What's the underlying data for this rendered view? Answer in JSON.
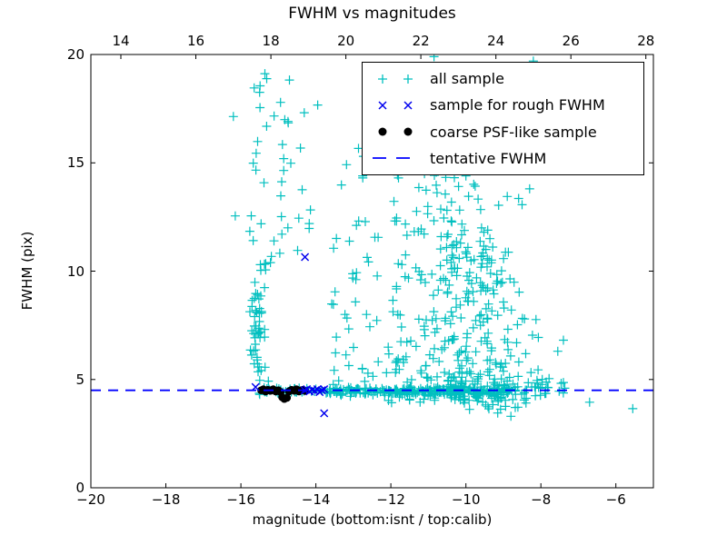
{
  "chart_data": {
    "type": "scatter",
    "title": "FWHM vs magnitudes",
    "xlabel": "magnitude (bottom:isnt / top:calib)",
    "ylabel": "FWHM (pix)",
    "grid": false,
    "x_axis": {
      "range": [
        -20,
        -5
      ],
      "ticks": [
        -20,
        -18,
        -16,
        -14,
        -12,
        -10,
        -8,
        -6
      ],
      "tick_labels": [
        "−20",
        "−18",
        "−16",
        "−14",
        "−12",
        "−10",
        "−8",
        "−6"
      ]
    },
    "top_axis": {
      "ticks": [
        14,
        16,
        18,
        20,
        22,
        24,
        26,
        28
      ],
      "tick_labels": [
        "14",
        "16",
        "18",
        "20",
        "22",
        "24",
        "26",
        "28"
      ],
      "offset_from_bottom": 33.2
    },
    "y_axis": {
      "range": [
        0,
        20
      ],
      "ticks": [
        0,
        5,
        10,
        15,
        20
      ],
      "tick_labels": [
        "0",
        "5",
        "10",
        "15",
        "20"
      ]
    },
    "legend": {
      "loc": "upper right"
    },
    "series": [
      {
        "name": "all sample",
        "marker": "plus",
        "color": "#00bfbf",
        "seed": 77,
        "clusters": [
          {
            "n": 40,
            "x": {
              "dist": "uniform",
              "a": -15.52,
              "b": -13.68
            },
            "y": {
              "dist": "normal",
              "mean": 4.48,
              "sd": 0.08
            }
          },
          {
            "n": 225,
            "x": {
              "dist": "uniform",
              "a": -13.7,
              "b": -8.85
            },
            "y": {
              "dist": "normal",
              "mean": 4.45,
              "sd": 0.09
            }
          },
          {
            "n": 22,
            "x": {
              "dist": "uniform",
              "a": -13.6,
              "b": -8.9
            },
            "y": {
              "dist": "normal",
              "mean": 4.5,
              "sd": 0.3
            }
          },
          {
            "n": 26,
            "x": {
              "dist": "uniform",
              "a": -8.85,
              "b": -7.35
            },
            "y": {
              "dist": "normal",
              "mean": 4.55,
              "sd": 0.25
            }
          },
          {
            "n": 40,
            "x": {
              "dist": "normal",
              "mean": -15.55,
              "sd": 0.12,
              "clip": [
                -15.9,
                -15.22
              ]
            },
            "y": {
              "dist": "uniform",
              "a": 5.6,
              "b": 9.3
            }
          },
          {
            "n": 7,
            "x": {
              "dist": "normal",
              "mean": -15.5,
              "sd": 0.15
            },
            "y": {
              "dist": "uniform",
              "a": 9.3,
              "b": 10.45
            }
          },
          {
            "n": 6,
            "x": {
              "dist": "normal",
              "mean": -15.45,
              "sd": 0.1
            },
            "y": {
              "dist": "uniform",
              "a": 4.85,
              "b": 5.6
            }
          },
          {
            "n": 44,
            "x": {
              "dist": "normal",
              "mean": -15.0,
              "sd": 0.55,
              "clip": [
                -16.2,
                -13.5
              ]
            },
            "y": {
              "dist": "uniform",
              "a": 10.6,
              "b": 19.55
            }
          },
          {
            "n": 10,
            "x": {
              "dist": "uniform",
              "a": -13.45,
              "b": -11.7
            },
            "y": {
              "dist": "uniform",
              "a": 12.6,
              "b": 16.6
            }
          },
          {
            "n": 50,
            "x": {
              "dist": "uniform",
              "a": -13.6,
              "b": -11.6
            },
            "y": {
              "dist": "uniform",
              "a": 4.9,
              "b": 12.6
            }
          },
          {
            "n": 290,
            "x": {
              "dist": "normal",
              "mean": -9.7,
              "sd": 0.82,
              "ylink": -0.05,
              "clip": [
                -11.85,
                -7.4
              ]
            },
            "y": {
              "dist": "power",
              "base": 4.25,
              "range": 7.2,
              "exp": 2.3,
              "jitter": 0.25,
              "clip": [
                3.5,
                11.8
              ]
            }
          },
          {
            "n": 66,
            "x": {
              "dist": "normal",
              "mean": -10.25,
              "sd": 0.72,
              "clip": [
                -12,
                -8.4
              ]
            },
            "y": {
              "dist": "uniform",
              "a": 9.4,
              "b": 14.6
            }
          },
          {
            "n": 22,
            "x": {
              "dist": "uniform",
              "a": -11.95,
              "b": -10.8
            },
            "y": {
              "dist": "uniform",
              "a": 5.2,
              "b": 13.2
            }
          },
          {
            "n": 8,
            "x": {
              "dist": "normal",
              "mean": -9.3,
              "sd": 0.5
            },
            "y": {
              "dist": "uniform",
              "a": 3.6,
              "b": 4.15
            }
          }
        ],
        "extra_points": [
          [
            -16.15,
            12.55
          ],
          [
            -12.5,
            18.0
          ],
          [
            -10.85,
            19.9
          ],
          [
            -8.2,
            19.7
          ],
          [
            -7.55,
            6.3
          ],
          [
            -6.7,
            3.95
          ],
          [
            -5.55,
            3.65
          ],
          [
            -9.15,
            3.45
          ],
          [
            -8.8,
            3.3
          ],
          [
            -12.75,
            14.3
          ],
          [
            -8.3,
            13.8
          ],
          [
            -11.4,
            15.2
          ]
        ]
      },
      {
        "name": "sample for rough FWHM",
        "marker": "x",
        "color": "#0000ee",
        "points": [
          [
            -15.61,
            4.65
          ],
          [
            -14.3,
            4.5
          ],
          [
            -14.24,
            4.55
          ],
          [
            -14.17,
            4.45
          ],
          [
            -14.1,
            4.52
          ],
          [
            -14.03,
            4.47
          ],
          [
            -13.96,
            4.55
          ],
          [
            -13.9,
            4.42
          ],
          [
            -13.84,
            4.5
          ],
          [
            -13.78,
            4.55
          ],
          [
            -14.29,
            10.65
          ],
          [
            -13.78,
            3.44
          ]
        ]
      },
      {
        "name": "coarse PSF-like sample",
        "marker": "dot",
        "color": "#000000",
        "points": [
          [
            -15.46,
            4.5
          ],
          [
            -15.4,
            4.55
          ],
          [
            -15.34,
            4.45
          ],
          [
            -15.28,
            4.52
          ],
          [
            -15.21,
            4.48
          ],
          [
            -15.14,
            4.55
          ],
          [
            -15.07,
            4.45
          ],
          [
            -15.0,
            4.5
          ],
          [
            -14.94,
            4.42
          ],
          [
            -14.9,
            4.18
          ],
          [
            -14.84,
            4.1
          ],
          [
            -14.77,
            4.15
          ],
          [
            -14.72,
            4.45
          ],
          [
            -14.65,
            4.52
          ],
          [
            -14.58,
            4.48
          ],
          [
            -14.52,
            4.55
          ],
          [
            -14.45,
            4.45
          ],
          [
            -14.4,
            4.5
          ],
          [
            -14.34,
            4.52
          ],
          [
            -14.28,
            4.47
          ]
        ]
      },
      {
        "name": "tentative FWHM",
        "marker": "dashed-line",
        "color": "#0000ff",
        "y": 4.5
      }
    ]
  }
}
